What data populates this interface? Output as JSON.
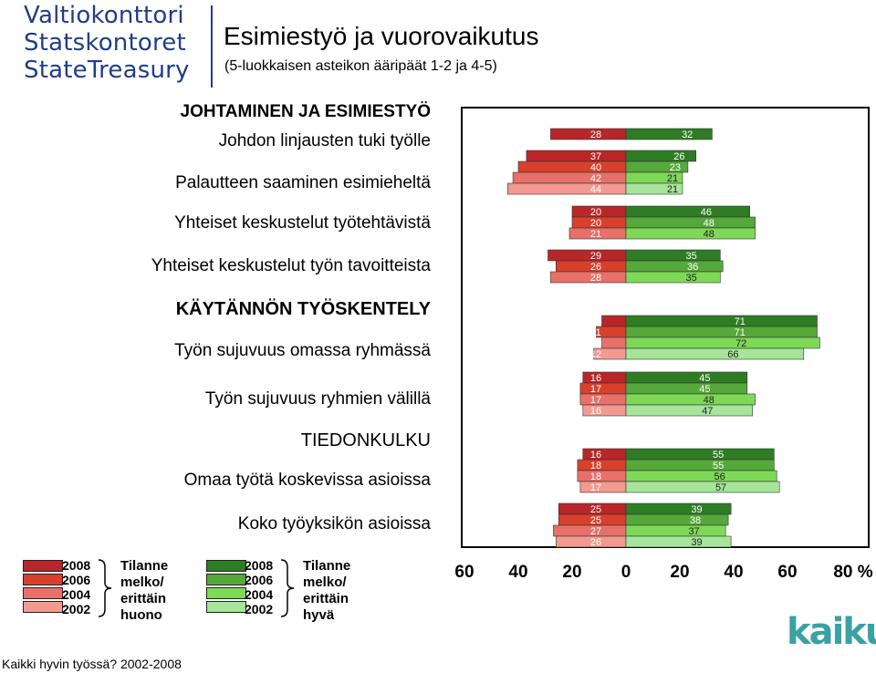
{
  "header": {
    "logo_lines": [
      "Valtiokonttori",
      "Statskontoret",
      "StateTreasury"
    ],
    "title": "Esimiestyö ja vuorovaikutus",
    "subtitle": "(5-luokkaisen asteikon ääripäät 1-2 ja 4-5)"
  },
  "rows": {
    "s1": "JOHTAMINEN JA ESIMIESTYÖ",
    "r1": "Johdon linjausten tuki työlle",
    "r2": "Palautteen saaminen esimieheltä",
    "r3": "Yhteiset keskustelut työtehtävistä",
    "r4": "Yhteiset keskustelut työn tavoitteista",
    "s2": "KÄYTÄNNÖN TYÖSKENTELY",
    "r5": "Työn sujuvuus omassa ryhmässä",
    "r6": "Työn sujuvuus ryhmien välillä",
    "s3": "TIEDONKULKU",
    "r7": "Omaa työtä koskevissa asioissa",
    "r8": "Koko työyksikön asioissa"
  },
  "legend": {
    "years": [
      "2008",
      "2006",
      "2004",
      "2002"
    ],
    "bad_label": [
      "Tilanne",
      "melko/",
      "erittäin",
      "huono"
    ],
    "good_label": [
      "Tilanne",
      "melko/",
      "erittäin",
      "hyvä"
    ],
    "colors_bad": [
      "#b8262a",
      "#d8402c",
      "#e8706a",
      "#f29a8f"
    ],
    "colors_good": [
      "#2e7d24",
      "#55a83a",
      "#7ed957",
      "#a6e59a"
    ]
  },
  "axis_ticks": [
    "60",
    "40",
    "20",
    "0",
    "20",
    "40",
    "60",
    "80 %"
  ],
  "footer": "Kaikki hyvin työssä? 2002-2008",
  "brand": "kaiku",
  "chart_data": {
    "type": "bar",
    "orientation": "horizontal-diverging",
    "xlabel": "%",
    "xlim": [
      -60,
      80
    ],
    "series_years": [
      "2008",
      "2006",
      "2004",
      "2002"
    ],
    "categories": [
      {
        "label": "Johdon linjausten tuki työlle",
        "bad": [
          28
        ],
        "good": [
          32
        ]
      },
      {
        "label": "Palautteen saaminen esimieheltä",
        "bad": [
          37,
          40,
          42,
          44
        ],
        "good": [
          26,
          23,
          21,
          21
        ]
      },
      {
        "label": "Yhteiset keskustelut työtehtävistä",
        "bad": [
          20,
          20,
          21
        ],
        "good": [
          46,
          48,
          48
        ]
      },
      {
        "label": "Yhteiset keskustelut työn tavoitteista",
        "bad": [
          29,
          26,
          28
        ],
        "good": [
          35,
          36,
          35
        ]
      },
      {
        "label": "Työn sujuvuus omassa ryhmässä",
        "bad": [
          9,
          11,
          9,
          12
        ],
        "good": [
          71,
          71,
          72,
          66
        ]
      },
      {
        "label": "Työn sujuvuus ryhmien välillä",
        "bad": [
          16,
          17,
          17,
          16
        ],
        "good": [
          45,
          45,
          48,
          47
        ]
      },
      {
        "label": "Omaa työtä koskevissa asioissa",
        "bad": [
          16,
          18,
          18,
          17
        ],
        "good": [
          55,
          55,
          56,
          57
        ]
      },
      {
        "label": "Koko työyksikön asioissa",
        "bad": [
          25,
          25,
          27,
          26
        ],
        "good": [
          39,
          38,
          37,
          39
        ]
      }
    ]
  }
}
